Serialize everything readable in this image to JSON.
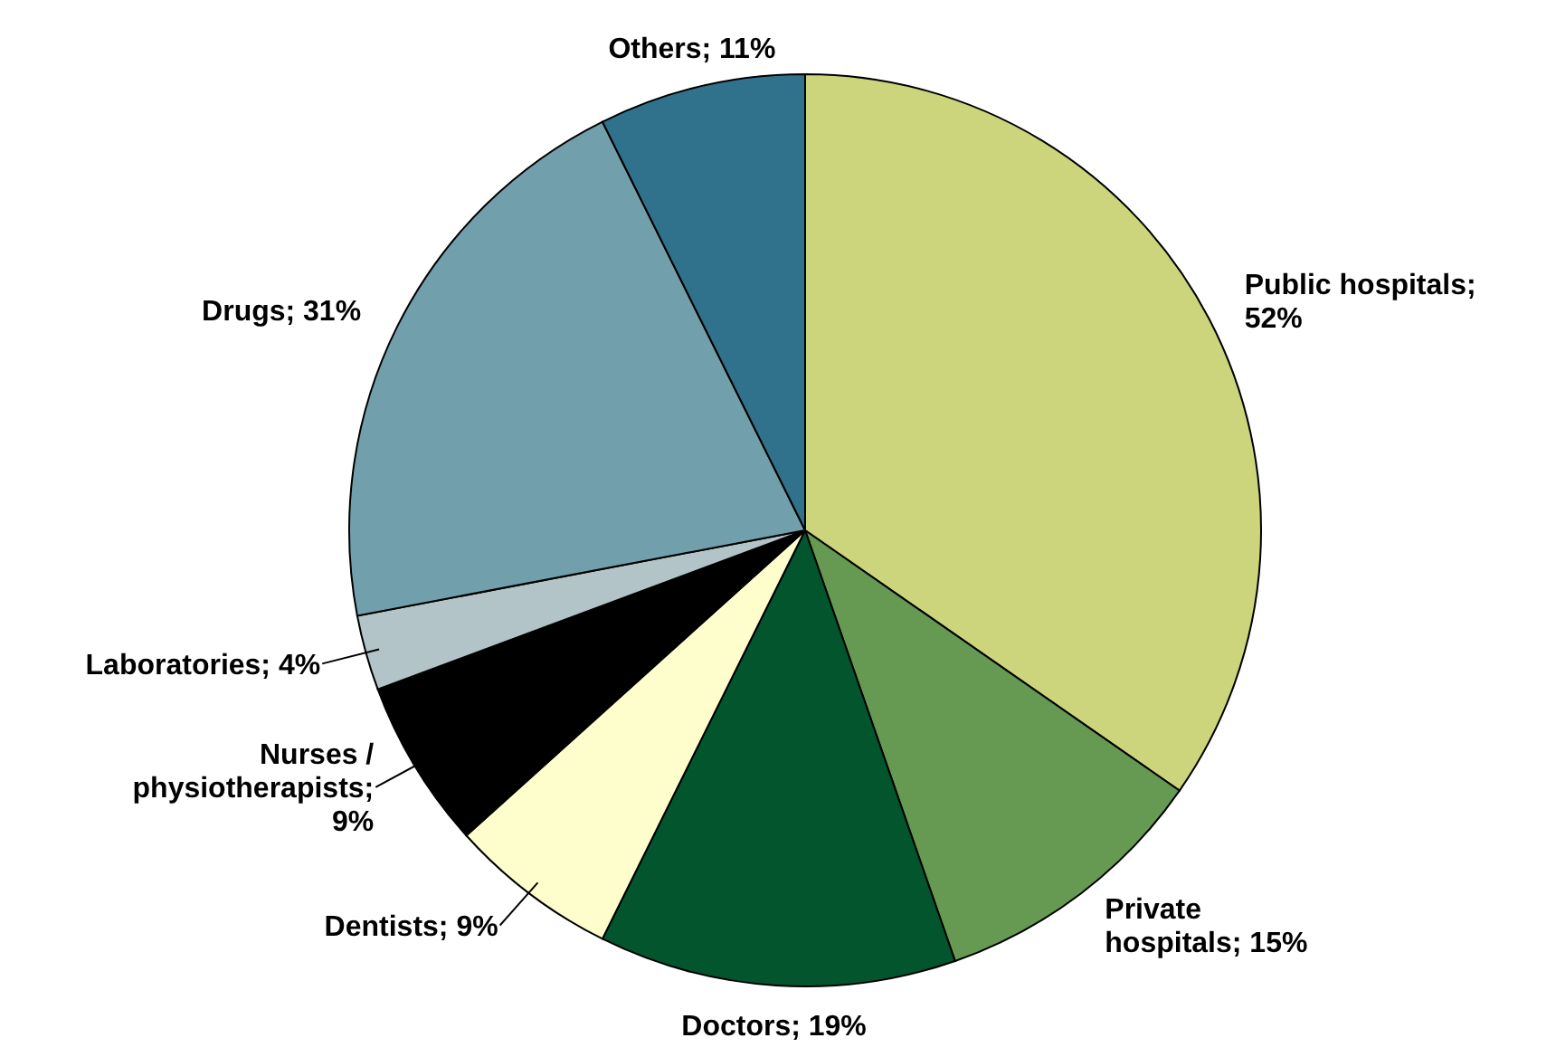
{
  "chart_data": {
    "type": "pie",
    "categories": [
      "Public hospitals; 52%",
      "Private hospitals; 15%",
      "Doctors; 19%",
      "Dentists; 9%",
      "Nurses / physiotherapists; 9%",
      "Laboratories; 4%",
      "Drugs; 31%",
      "Others; 11%"
    ],
    "values": [
      52,
      15,
      19,
      9,
      9,
      4,
      31,
      11
    ],
    "colors": [
      "#ccd47c",
      "#669a52",
      "#03552e",
      "#fefdcc",
      "#000000",
      "#b2c4c8",
      "#729fac",
      "#30718b"
    ]
  }
}
